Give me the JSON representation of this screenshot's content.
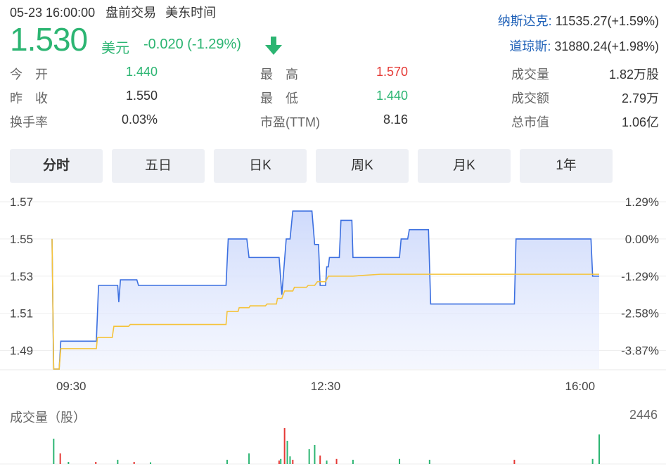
{
  "header": {
    "datetime": "05-23 16:00:00",
    "session": "盘前交易",
    "timezone": "美东时间",
    "price": "1.530",
    "currency": "美元",
    "change": "-0.020 (-1.29%)",
    "price_color": "#2cb572"
  },
  "indices": [
    {
      "name": "纳斯达克:",
      "value": "11535.27(+1.59%)"
    },
    {
      "name": "道琼斯:",
      "value": "31880.24(+1.98%)"
    }
  ],
  "stats": [
    {
      "label": "今　开",
      "value": "1.440",
      "color": "#2cb572"
    },
    {
      "label": "最　高",
      "value": "1.570",
      "color": "#e53935"
    },
    {
      "label": "成交量",
      "value": "1.82万股",
      "color": "#333333"
    },
    {
      "label": "昨　收",
      "value": "1.550",
      "color": "#333333"
    },
    {
      "label": "最　低",
      "value": "1.440",
      "color": "#2cb572"
    },
    {
      "label": "成交额",
      "value": "2.79万",
      "color": "#333333"
    },
    {
      "label": "换手率",
      "value": "0.03%",
      "color": "#333333"
    },
    {
      "label": "市盈(TTM)",
      "value": "8.16",
      "color": "#333333"
    },
    {
      "label": "总市值",
      "value": "1.06亿",
      "color": "#333333"
    }
  ],
  "tabs": [
    {
      "label": "分时",
      "active": true
    },
    {
      "label": "五日",
      "active": false
    },
    {
      "label": "日K",
      "active": false
    },
    {
      "label": "周K",
      "active": false
    },
    {
      "label": "月K",
      "active": false
    },
    {
      "label": "1年",
      "active": false
    }
  ],
  "chart_data": {
    "type": "line",
    "ylim": [
      1.48,
      1.57
    ],
    "y_ticks_left": [
      "1.57",
      "1.55",
      "1.53",
      "1.51",
      "1.49"
    ],
    "y_ticks_right": [
      "1.29%",
      "0.00%",
      "-1.29%",
      "-2.58%",
      "-3.87%"
    ],
    "x_ticks": [
      "09:30",
      "12:30",
      "16:00"
    ],
    "series": [
      {
        "color": "#3b6fe0",
        "points": [
          [
            0,
            1.55
          ],
          [
            0.003,
            1.48
          ],
          [
            0.013,
            1.48
          ],
          [
            0.016,
            1.495
          ],
          [
            0.081,
            1.495
          ],
          [
            0.085,
            1.525
          ],
          [
            0.12,
            1.525
          ],
          [
            0.122,
            1.516
          ],
          [
            0.125,
            1.528
          ],
          [
            0.155,
            1.528
          ],
          [
            0.158,
            1.525
          ],
          [
            0.318,
            1.525
          ],
          [
            0.322,
            1.55
          ],
          [
            0.356,
            1.55
          ],
          [
            0.36,
            1.54
          ],
          [
            0.415,
            1.54
          ],
          [
            0.42,
            1.52
          ],
          [
            0.428,
            1.55
          ],
          [
            0.435,
            1.55
          ],
          [
            0.44,
            1.565
          ],
          [
            0.475,
            1.565
          ],
          [
            0.48,
            1.547
          ],
          [
            0.487,
            1.547
          ],
          [
            0.49,
            1.525
          ],
          [
            0.5,
            1.525
          ],
          [
            0.502,
            1.535
          ],
          [
            0.505,
            1.535
          ],
          [
            0.507,
            1.54
          ],
          [
            0.515,
            1.54
          ],
          [
            0.517,
            1.54
          ],
          [
            0.525,
            1.54
          ],
          [
            0.528,
            1.56
          ],
          [
            0.548,
            1.56
          ],
          [
            0.55,
            1.54
          ],
          [
            0.635,
            1.54
          ],
          [
            0.638,
            1.55
          ],
          [
            0.65,
            1.55
          ],
          [
            0.653,
            1.555
          ],
          [
            0.688,
            1.555
          ],
          [
            0.692,
            1.515
          ],
          [
            0.845,
            1.515
          ],
          [
            0.848,
            1.55
          ],
          [
            0.985,
            1.55
          ],
          [
            0.988,
            1.53
          ],
          [
            1.0,
            1.53
          ]
        ]
      },
      {
        "color": "#f5c33b",
        "points": [
          [
            0,
            1.55
          ],
          [
            0.003,
            1.48
          ],
          [
            0.013,
            1.48
          ],
          [
            0.016,
            1.491
          ],
          [
            0.081,
            1.491
          ],
          [
            0.083,
            1.497
          ],
          [
            0.11,
            1.497
          ],
          [
            0.113,
            1.503
          ],
          [
            0.14,
            1.503
          ],
          [
            0.143,
            1.504
          ],
          [
            0.318,
            1.504
          ],
          [
            0.32,
            1.511
          ],
          [
            0.34,
            1.511
          ],
          [
            0.342,
            1.513
          ],
          [
            0.36,
            1.513
          ],
          [
            0.362,
            1.514
          ],
          [
            0.39,
            1.514
          ],
          [
            0.393,
            1.515
          ],
          [
            0.41,
            1.515
          ],
          [
            0.412,
            1.518
          ],
          [
            0.42,
            1.518
          ],
          [
            0.425,
            1.522
          ],
          [
            0.44,
            1.522
          ],
          [
            0.443,
            1.524
          ],
          [
            0.465,
            1.524
          ],
          [
            0.468,
            1.525
          ],
          [
            0.48,
            1.525
          ],
          [
            0.485,
            1.527
          ],
          [
            0.5,
            1.527
          ],
          [
            0.505,
            1.53
          ],
          [
            0.55,
            1.53
          ],
          [
            0.6,
            1.531
          ],
          [
            0.7,
            1.531
          ],
          [
            1.0,
            1.531
          ]
        ]
      }
    ]
  },
  "volume": {
    "title": "成交量（股）",
    "max_label": "2446",
    "up_color": "#e53935",
    "down_color": "#2cb572",
    "bars": [
      {
        "x": 0.003,
        "v": 0.6,
        "c": "down"
      },
      {
        "x": 0.015,
        "v": 0.25,
        "c": "up"
      },
      {
        "x": 0.03,
        "v": 0.05,
        "c": "down"
      },
      {
        "x": 0.08,
        "v": 0.05,
        "c": "up"
      },
      {
        "x": 0.12,
        "v": 0.1,
        "c": "down"
      },
      {
        "x": 0.15,
        "v": 0.05,
        "c": "up"
      },
      {
        "x": 0.18,
        "v": 0.04,
        "c": "down"
      },
      {
        "x": 0.32,
        "v": 0.1,
        "c": "down"
      },
      {
        "x": 0.36,
        "v": 0.25,
        "c": "down"
      },
      {
        "x": 0.415,
        "v": 0.08,
        "c": "up"
      },
      {
        "x": 0.418,
        "v": 0.12,
        "c": "down"
      },
      {
        "x": 0.425,
        "v": 0.85,
        "c": "up"
      },
      {
        "x": 0.43,
        "v": 0.55,
        "c": "down"
      },
      {
        "x": 0.435,
        "v": 0.18,
        "c": "down"
      },
      {
        "x": 0.44,
        "v": 0.1,
        "c": "up"
      },
      {
        "x": 0.47,
        "v": 0.35,
        "c": "down"
      },
      {
        "x": 0.48,
        "v": 0.45,
        "c": "down"
      },
      {
        "x": 0.49,
        "v": 0.2,
        "c": "up"
      },
      {
        "x": 0.502,
        "v": 0.08,
        "c": "down"
      },
      {
        "x": 0.52,
        "v": 0.12,
        "c": "up"
      },
      {
        "x": 0.55,
        "v": 0.1,
        "c": "down"
      },
      {
        "x": 0.635,
        "v": 0.12,
        "c": "down"
      },
      {
        "x": 0.69,
        "v": 0.1,
        "c": "down"
      },
      {
        "x": 0.845,
        "v": 0.1,
        "c": "up"
      },
      {
        "x": 0.988,
        "v": 0.12,
        "c": "down"
      },
      {
        "x": 1.0,
        "v": 0.7,
        "c": "down"
      }
    ]
  }
}
